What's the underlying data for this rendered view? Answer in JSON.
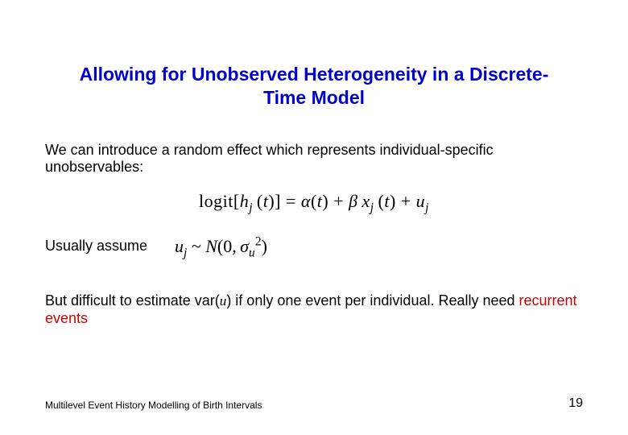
{
  "title": "Allowing for Unobserved Heterogeneity in a Discrete-Time Model",
  "intro": "We can introduce a random effect which represents individual-specific unobservables:",
  "formula": {
    "logit_text": "logit",
    "h": "h",
    "j": "j",
    "t": "t",
    "alpha": "α",
    "beta": "β",
    "x": "x",
    "u": "u"
  },
  "assume_label": "Usually assume",
  "dist": {
    "u": "u",
    "j": "j",
    "tilde": "~",
    "N": "N",
    "zero": "0",
    "sigma": "σ",
    "sub": "u",
    "sq": "2"
  },
  "difficult_prefix": "But difficult to estimate var(",
  "difficult_var": "u",
  "difficult_suffix": ") if only one event per individual. Really need ",
  "recurrent": "recurrent events",
  "footer_left": "Multilevel Event History Modelling of Birth Intervals",
  "page_number": "19",
  "colors": {
    "title": "#0000cc",
    "body": "#000000",
    "accent": "#cc0000",
    "background": "#ffffff"
  },
  "fonts": {
    "body_family": "Arial",
    "math_family": "Times New Roman",
    "title_size_pt": 17,
    "body_size_pt": 14,
    "formula_size_pt": 16,
    "footer_size_pt": 9
  }
}
